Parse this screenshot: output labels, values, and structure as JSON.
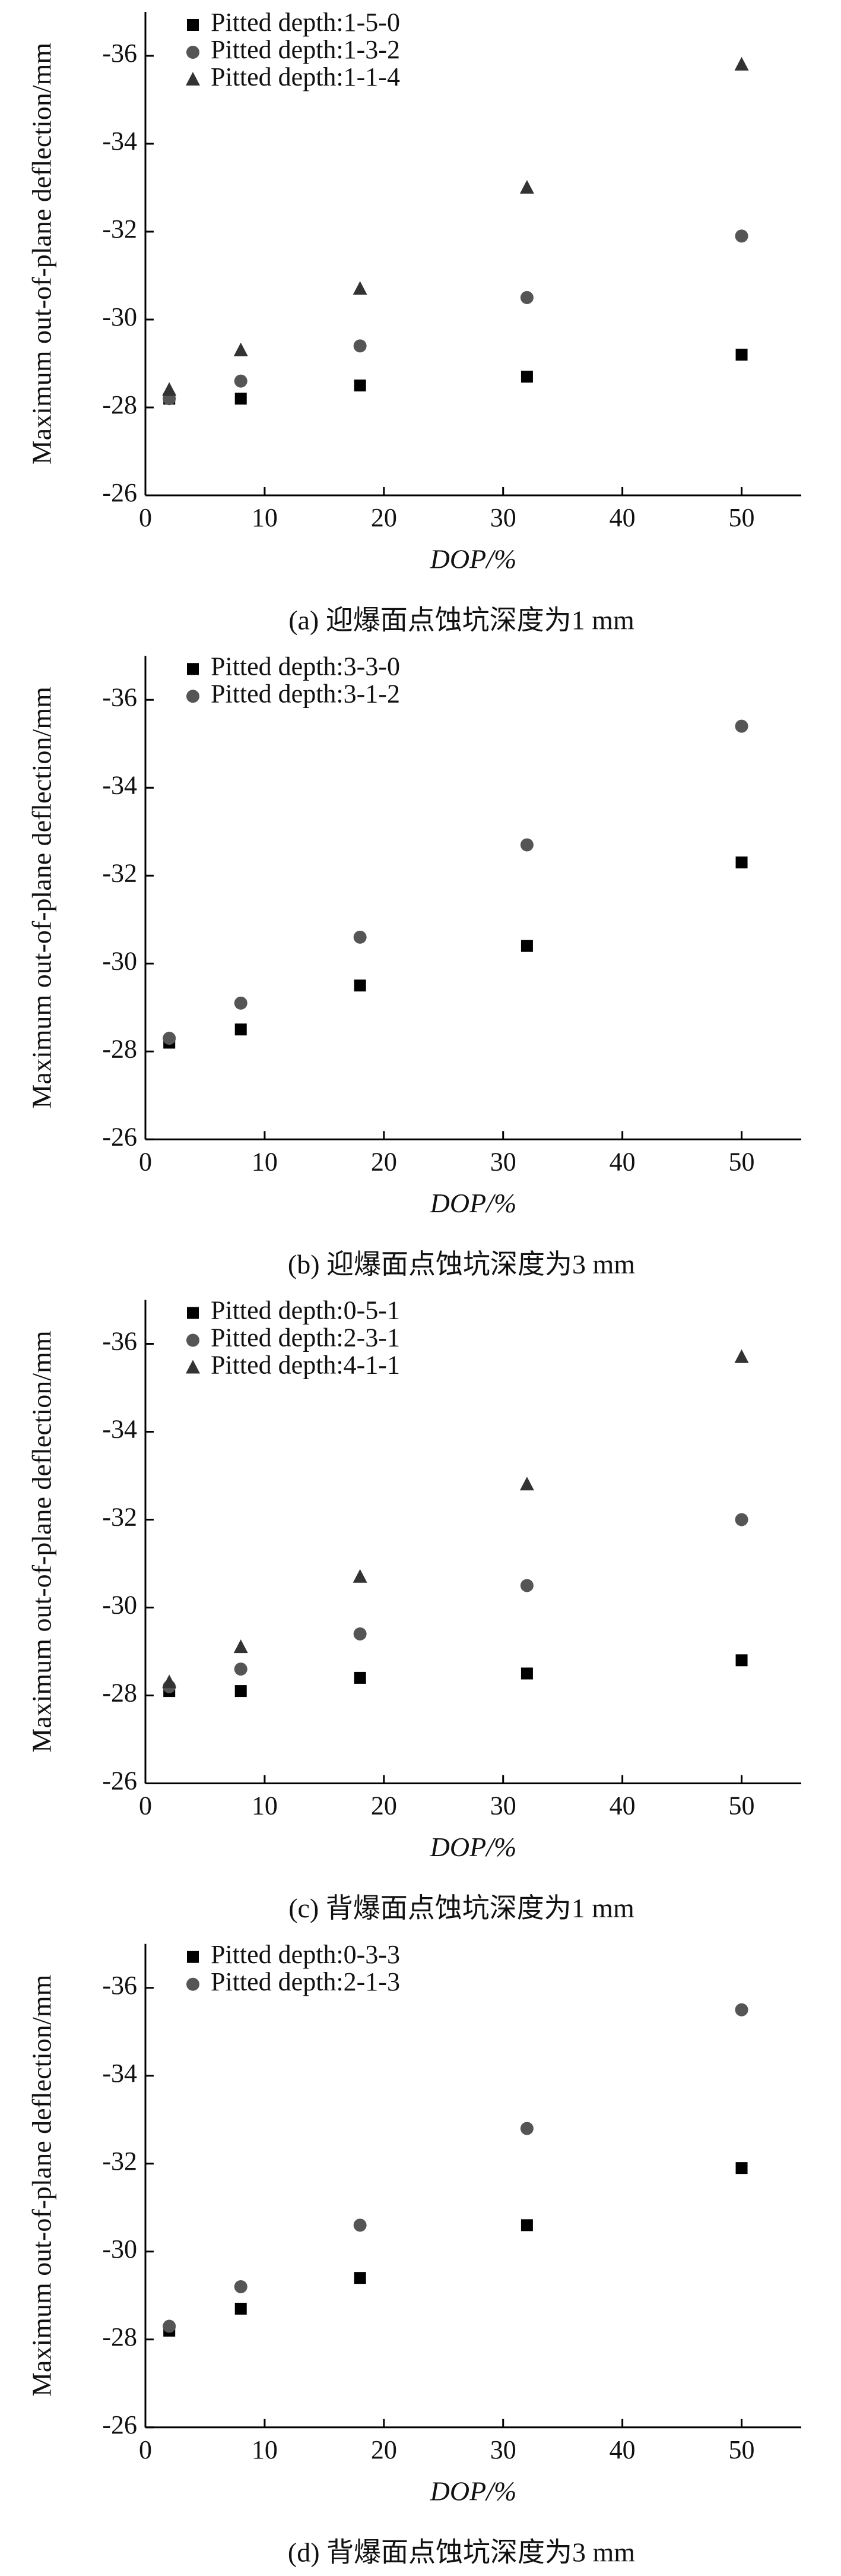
{
  "chart_data": [
    {
      "type": "scatter",
      "y_label": "Maximum out-of-plane deflection/mm",
      "x_label": "DOP/%",
      "caption": "(a) 迎爆面点蚀坑深度为1 mm",
      "x": [
        2,
        8,
        18,
        32,
        50
      ],
      "xlim": [
        0,
        55
      ],
      "xticks": [
        0,
        10,
        20,
        30,
        40,
        50
      ],
      "ylim": [
        -26,
        -37
      ],
      "yticks": [
        -26,
        -28,
        -30,
        -32,
        -34,
        -36
      ],
      "legend": "upper left",
      "series": [
        {
          "name": "Pitted depth:1-5-0",
          "color": "#000000",
          "marker": "square",
          "values": [
            -28.2,
            -28.2,
            -28.5,
            -28.7,
            -29.2
          ]
        },
        {
          "name": "Pitted depth:1-3-2",
          "color": "#555555",
          "marker": "circle",
          "values": [
            -28.2,
            -28.6,
            -29.4,
            -30.5,
            -31.9
          ]
        },
        {
          "name": "Pitted depth:1-1-4",
          "color": "#333333",
          "marker": "triangle",
          "values": [
            -28.4,
            -29.3,
            -30.7,
            -33.0,
            -35.8
          ]
        }
      ]
    },
    {
      "type": "scatter",
      "y_label": "Maximum out-of-plane deflection/mm",
      "x_label": "DOP/%",
      "caption": "(b) 迎爆面点蚀坑深度为3 mm",
      "x": [
        2,
        8,
        18,
        32,
        50
      ],
      "xlim": [
        0,
        55
      ],
      "xticks": [
        0,
        10,
        20,
        30,
        40,
        50
      ],
      "ylim": [
        -26,
        -37
      ],
      "yticks": [
        -26,
        -28,
        -30,
        -32,
        -34,
        -36
      ],
      "legend": "upper left",
      "series": [
        {
          "name": "Pitted depth:3-3-0",
          "color": "#000000",
          "marker": "square",
          "values": [
            -28.2,
            -28.5,
            -29.5,
            -30.4,
            -32.3
          ]
        },
        {
          "name": "Pitted depth:3-1-2",
          "color": "#555555",
          "marker": "circle",
          "values": [
            -28.3,
            -29.1,
            -30.6,
            -32.7,
            -35.4
          ]
        }
      ]
    },
    {
      "type": "scatter",
      "y_label": "Maximum out-of-plane deflection/mm",
      "x_label": "DOP/%",
      "caption": "(c) 背爆面点蚀坑深度为1 mm",
      "x": [
        2,
        8,
        18,
        32,
        50
      ],
      "xlim": [
        0,
        55
      ],
      "xticks": [
        0,
        10,
        20,
        30,
        40,
        50
      ],
      "ylim": [
        -26,
        -37
      ],
      "yticks": [
        -26,
        -28,
        -30,
        -32,
        -34,
        -36
      ],
      "legend": "upper left",
      "series": [
        {
          "name": "Pitted depth:0-5-1",
          "color": "#000000",
          "marker": "square",
          "values": [
            -28.1,
            -28.1,
            -28.4,
            -28.5,
            -28.8
          ]
        },
        {
          "name": "Pitted depth:2-3-1",
          "color": "#555555",
          "marker": "circle",
          "values": [
            -28.2,
            -28.6,
            -29.4,
            -30.5,
            -32.0
          ]
        },
        {
          "name": "Pitted depth:4-1-1",
          "color": "#333333",
          "marker": "triangle",
          "values": [
            -28.3,
            -29.1,
            -30.7,
            -32.8,
            -35.7
          ]
        }
      ]
    },
    {
      "type": "scatter",
      "y_label": "Maximum out-of-plane deflection/mm",
      "x_label": "DOP/%",
      "caption": "(d) 背爆面点蚀坑深度为3 mm",
      "x": [
        2,
        8,
        18,
        32,
        50
      ],
      "xlim": [
        0,
        55
      ],
      "xticks": [
        0,
        10,
        20,
        30,
        40,
        50
      ],
      "ylim": [
        -26,
        -37
      ],
      "yticks": [
        -26,
        -28,
        -30,
        -32,
        -34,
        -36
      ],
      "legend": "upper left",
      "series": [
        {
          "name": "Pitted depth:0-3-3",
          "color": "#000000",
          "marker": "square",
          "values": [
            -28.2,
            -28.7,
            -29.4,
            -30.6,
            -31.9
          ]
        },
        {
          "name": "Pitted depth:2-1-3",
          "color": "#555555",
          "marker": "circle",
          "values": [
            -28.3,
            -29.2,
            -30.6,
            -32.8,
            -35.5
          ]
        }
      ]
    }
  ]
}
